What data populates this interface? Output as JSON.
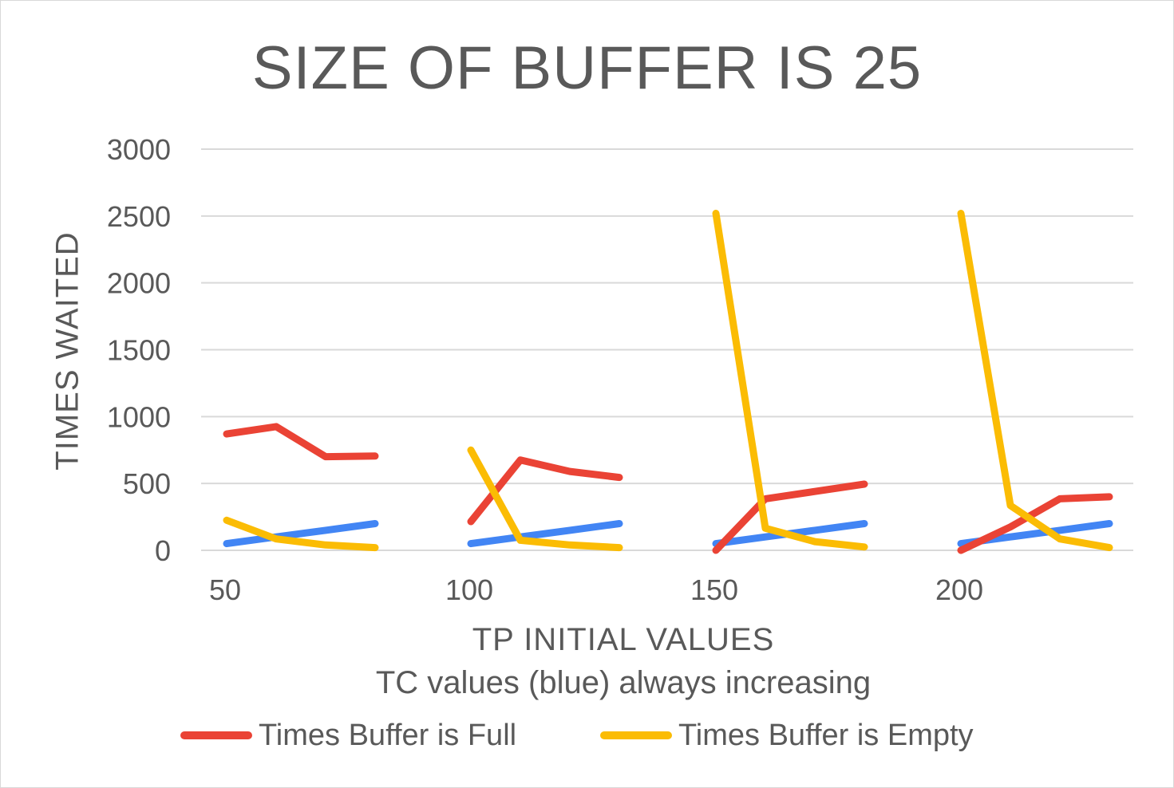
{
  "chart_data": {
    "type": "line",
    "title": "SIZE OF BUFFER IS 25",
    "xlabel": "TP INITIAL VALUES",
    "xlabel_sub": "TC values (blue) always increasing",
    "ylabel": "TIMES WAITED",
    "ylim": [
      0,
      3000
    ],
    "yticks": [
      "0",
      "500",
      "1000",
      "1500",
      "2000",
      "2500",
      "3000"
    ],
    "xticks": [
      "50",
      "100",
      "150",
      "200"
    ],
    "grid": "horizontal",
    "legend_position": "bottom",
    "groups": [
      {
        "label": "50",
        "series": [
          {
            "name": "Times Buffer is Full",
            "color": "#ea4335",
            "values": [
              870,
              925,
              700,
              705
            ]
          },
          {
            "name": "Times Buffer is Empty",
            "color": "#fbbc04",
            "values": [
              225,
              85,
              40,
              20
            ]
          },
          {
            "color": "#4285f4",
            "values": [
              50,
              100,
              150,
              200
            ]
          }
        ]
      },
      {
        "label": "100",
        "series": [
          {
            "name": "Times Buffer is Full",
            "color": "#ea4335",
            "values": [
              215,
              675,
              590,
              545
            ]
          },
          {
            "name": "Times Buffer is Empty",
            "color": "#fbbc04",
            "values": [
              750,
              75,
              40,
              20
            ]
          },
          {
            "color": "#4285f4",
            "values": [
              50,
              100,
              150,
              200
            ]
          }
        ]
      },
      {
        "label": "150",
        "series": [
          {
            "name": "Times Buffer is Full",
            "color": "#ea4335",
            "values": [
              0,
              385,
              440,
              495
            ]
          },
          {
            "name": "Times Buffer is Empty",
            "color": "#fbbc04",
            "values": [
              2520,
              165,
              65,
              25
            ]
          },
          {
            "color": "#4285f4",
            "values": [
              50,
              100,
              150,
              200
            ]
          }
        ]
      },
      {
        "label": "200",
        "series": [
          {
            "name": "Times Buffer is Full",
            "color": "#ea4335",
            "values": [
              0,
              175,
              385,
              400
            ]
          },
          {
            "name": "Times Buffer is Empty",
            "color": "#fbbc04",
            "values": [
              2520,
              335,
              85,
              20
            ]
          },
          {
            "color": "#4285f4",
            "values": [
              50,
              100,
              150,
              200
            ]
          }
        ]
      }
    ],
    "legend": [
      {
        "name": "Times Buffer is Full",
        "color": "#ea4335"
      },
      {
        "name": "Times Buffer is Empty",
        "color": "#fbbc04"
      }
    ]
  }
}
